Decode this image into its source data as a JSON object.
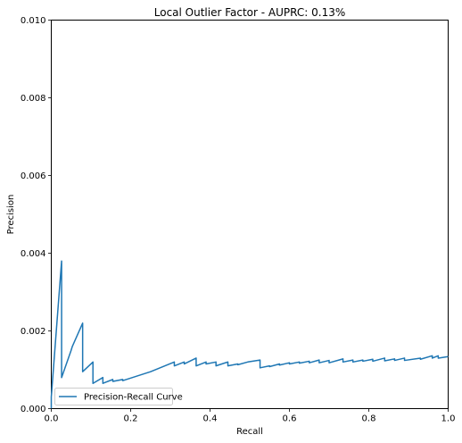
{
  "chart_data": {
    "type": "line",
    "title": "Local Outlier Factor - AUPRC: 0.13%",
    "xlabel": "Recall",
    "ylabel": "Precision",
    "xlim": [
      0,
      1
    ],
    "ylim": [
      0,
      0.01
    ],
    "x_ticks": [
      "0.0",
      "0.2",
      "0.4",
      "0.6",
      "0.8",
      "1.0"
    ],
    "y_ticks": [
      "0.000",
      "0.002",
      "0.004",
      "0.006",
      "0.008",
      "0.010"
    ],
    "grid": false,
    "legend_position": "lower-left",
    "series": [
      {
        "name": "Precision-Recall Curve",
        "color": "#1f77b4",
        "x": [
          0.0,
          0.0,
          0.026,
          0.026,
          0.05,
          0.05,
          0.053,
          0.079,
          0.079,
          0.105,
          0.105,
          0.13,
          0.13,
          0.155,
          0.155,
          0.18,
          0.18,
          0.25,
          0.31,
          0.31,
          0.335,
          0.335,
          0.365,
          0.365,
          0.39,
          0.39,
          0.415,
          0.415,
          0.445,
          0.445,
          0.47,
          0.47,
          0.495,
          0.526,
          0.526,
          0.55,
          0.55,
          0.575,
          0.575,
          0.6,
          0.6,
          0.625,
          0.625,
          0.65,
          0.65,
          0.675,
          0.675,
          0.7,
          0.7,
          0.735,
          0.735,
          0.76,
          0.76,
          0.785,
          0.785,
          0.81,
          0.81,
          0.84,
          0.84,
          0.865,
          0.865,
          0.89,
          0.89,
          0.93,
          0.93,
          0.96,
          0.96,
          0.975,
          0.975,
          1.0
        ],
        "y": [
          0.0,
          0.0003,
          0.0038,
          0.0008,
          0.0015,
          0.0015,
          0.0016,
          0.0022,
          0.00095,
          0.0012,
          0.00065,
          0.0008,
          0.00065,
          0.00075,
          0.0007,
          0.00075,
          0.00072,
          0.00095,
          0.0012,
          0.0011,
          0.0012,
          0.00115,
          0.0013,
          0.0011,
          0.0012,
          0.00115,
          0.0012,
          0.0011,
          0.0012,
          0.0011,
          0.00115,
          0.00113,
          0.0012,
          0.00125,
          0.00105,
          0.0011,
          0.00108,
          0.00115,
          0.00112,
          0.00118,
          0.00115,
          0.0012,
          0.00117,
          0.00122,
          0.00118,
          0.00125,
          0.00118,
          0.00124,
          0.00118,
          0.00128,
          0.0012,
          0.00125,
          0.0012,
          0.00125,
          0.00122,
          0.00127,
          0.00122,
          0.0013,
          0.00123,
          0.00128,
          0.00124,
          0.0013,
          0.00124,
          0.0013,
          0.00127,
          0.00136,
          0.0013,
          0.00136,
          0.0013,
          0.00134
        ]
      }
    ]
  }
}
